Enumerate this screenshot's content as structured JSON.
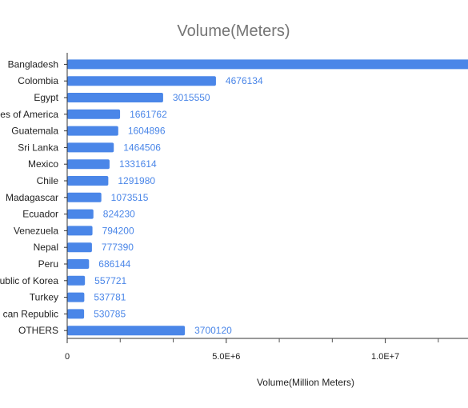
{
  "chart_data": {
    "type": "bar",
    "orientation": "horizontal",
    "title": "Volume(Meters)",
    "xlabel": "Volume(Million Meters)",
    "ylabel": "",
    "categories": [
      "Bangladesh",
      "Colombia",
      "Egypt",
      "United States of America",
      "Guatemala",
      "Sri Lanka",
      "Mexico",
      "Chile",
      "Madagascar",
      "Ecuador",
      "Venezuela",
      "Nepal",
      "Peru",
      "Republic of Korea",
      "Turkey",
      "Dominican Republic",
      "OTHERS"
    ],
    "category_labels": [
      "Bangladesh",
      "Colombia",
      "Egypt",
      "es of America",
      "Guatemala",
      "Sri Lanka",
      "Mexico",
      "Chile",
      "Madagascar",
      "Ecuador",
      "Venezuela",
      "Nepal",
      "Peru",
      "ublic of Korea",
      "Turkey",
      "can Republic",
      "OTHERS"
    ],
    "values": [
      13000000,
      4676134,
      3015550,
      1661762,
      1604896,
      1464506,
      1331614,
      1291980,
      1073515,
      824230,
      794200,
      777390,
      686144,
      557721,
      537781,
      530785,
      3700120
    ],
    "data_labels": [
      "",
      "4676134",
      "3015550",
      "1661762",
      "1604896",
      "1464506",
      "1331614",
      "1291980",
      "1073515",
      "824230",
      "794200",
      "777390",
      "686144",
      "557721",
      "537781",
      "530785",
      "3700120"
    ],
    "xlim": [
      0,
      12600000
    ],
    "xticks": [
      {
        "value": 0,
        "label": "0"
      },
      {
        "value": 5000000,
        "label": "5.0E+6"
      },
      {
        "value": 10000000,
        "label": "1.0E+7"
      }
    ],
    "minor_xticks": [
      1666667,
      3333333,
      6666667,
      8333333,
      11666667
    ],
    "bar_color": "#4a86e8",
    "label_color": "#4a86e8",
    "grid": false,
    "legend": "none"
  }
}
